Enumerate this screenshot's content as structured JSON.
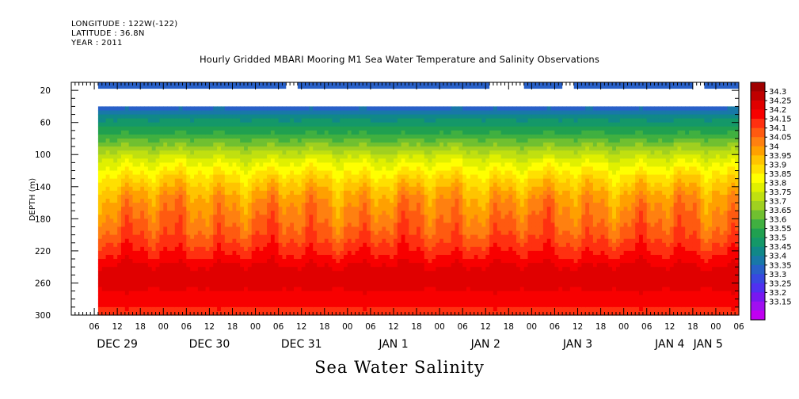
{
  "header": {
    "longitude": "LONGITUDE : 122W(-122)",
    "latitude": "LATITUDE : 36.8N",
    "year": "YEAR : 2011"
  },
  "chart_data": {
    "type": "heatmap",
    "title": "Hourly Gridded MBARI Mooring M1 Sea Water Temperature and Salinity Observations",
    "bottom_title": "Sea Water Salinity",
    "ylabel": "DEPTH (m)",
    "ylim": [
      300,
      10
    ],
    "y_inverted": true,
    "y_ticks": [
      20,
      60,
      100,
      140,
      180,
      220,
      260,
      300
    ],
    "xlim_hours": [
      0,
      174
    ],
    "x_hour_ticks": [
      "06",
      "12",
      "18",
      "00",
      "06",
      "12",
      "18",
      "00",
      "06",
      "12",
      "18",
      "00",
      "06",
      "12",
      "18",
      "00",
      "06",
      "12",
      "18",
      "00",
      "06",
      "12",
      "18",
      "00",
      "06",
      "12",
      "18",
      "00",
      "06"
    ],
    "x_date_labels": [
      {
        "label": "DEC 29",
        "hour": 12
      },
      {
        "label": "DEC 30",
        "hour": 36
      },
      {
        "label": "DEC 31",
        "hour": 60
      },
      {
        "label": "JAN  1",
        "hour": 84
      },
      {
        "label": "JAN  2",
        "hour": 108
      },
      {
        "label": "JAN  3",
        "hour": 132
      },
      {
        "label": "JAN  4",
        "hour": 156
      },
      {
        "label": "JAN  5",
        "hour": 166
      }
    ],
    "data_start_hour": 7,
    "data_depth_range_m": [
      40,
      300
    ],
    "surface_segments": [
      {
        "start_hour": 7,
        "end_hour": 56
      },
      {
        "start_hour": 59,
        "end_hour": 109
      },
      {
        "start_hour": 118,
        "end_hour": 128
      },
      {
        "start_hour": 131,
        "end_hour": 162
      },
      {
        "start_hour": 165,
        "end_hour": 174
      }
    ],
    "surface_value": 33.35,
    "salinity_profile": [
      {
        "depth": 40,
        "value": 33.38
      },
      {
        "depth": 50,
        "value": 33.45
      },
      {
        "depth": 60,
        "value": 33.52
      },
      {
        "depth": 70,
        "value": 33.58
      },
      {
        "depth": 80,
        "value": 33.64
      },
      {
        "depth": 90,
        "value": 33.71
      },
      {
        "depth": 100,
        "value": 33.78
      },
      {
        "depth": 110,
        "value": 33.84
      },
      {
        "depth": 120,
        "value": 33.89
      },
      {
        "depth": 130,
        "value": 33.94
      },
      {
        "depth": 140,
        "value": 33.98
      },
      {
        "depth": 150,
        "value": 34.02
      },
      {
        "depth": 160,
        "value": 34.05
      },
      {
        "depth": 170,
        "value": 34.07
      },
      {
        "depth": 180,
        "value": 34.09
      },
      {
        "depth": 190,
        "value": 34.11
      },
      {
        "depth": 200,
        "value": 34.13
      },
      {
        "depth": 210,
        "value": 34.16
      },
      {
        "depth": 220,
        "value": 34.19
      },
      {
        "depth": 230,
        "value": 34.22
      },
      {
        "depth": 240,
        "value": 34.26
      },
      {
        "depth": 250,
        "value": 34.28
      },
      {
        "depth": 260,
        "value": 34.27
      },
      {
        "depth": 270,
        "value": 34.25
      },
      {
        "depth": 280,
        "value": 34.22
      },
      {
        "depth": 290,
        "value": 34.2
      },
      {
        "depth": 300,
        "value": 34.19
      }
    ],
    "colorbar": {
      "levels": [
        "34.3",
        "34.25",
        "34.2",
        "34.15",
        "34.1",
        "34.05",
        "34",
        "33.95",
        "33.9",
        "33.85",
        "33.8",
        "33.75",
        "33.7",
        "33.65",
        "33.6",
        "33.55",
        "33.5",
        "33.45",
        "33.4",
        "33.35",
        "33.3",
        "33.25",
        "33.2",
        "33.15"
      ],
      "colors": [
        "#a00000",
        "#c00000",
        "#e00000",
        "#f80000",
        "#ff3010",
        "#ff5a10",
        "#ff8010",
        "#ffa000",
        "#ffc400",
        "#ffe000",
        "#ffff00",
        "#e0f000",
        "#c0e010",
        "#a0d020",
        "#70c030",
        "#40b040",
        "#20a050",
        "#149868",
        "#108888",
        "#1878a8",
        "#2860c8",
        "#3848e0",
        "#5030f0",
        "#7818f0",
        "#a010f0",
        "#c000f0"
      ]
    }
  }
}
